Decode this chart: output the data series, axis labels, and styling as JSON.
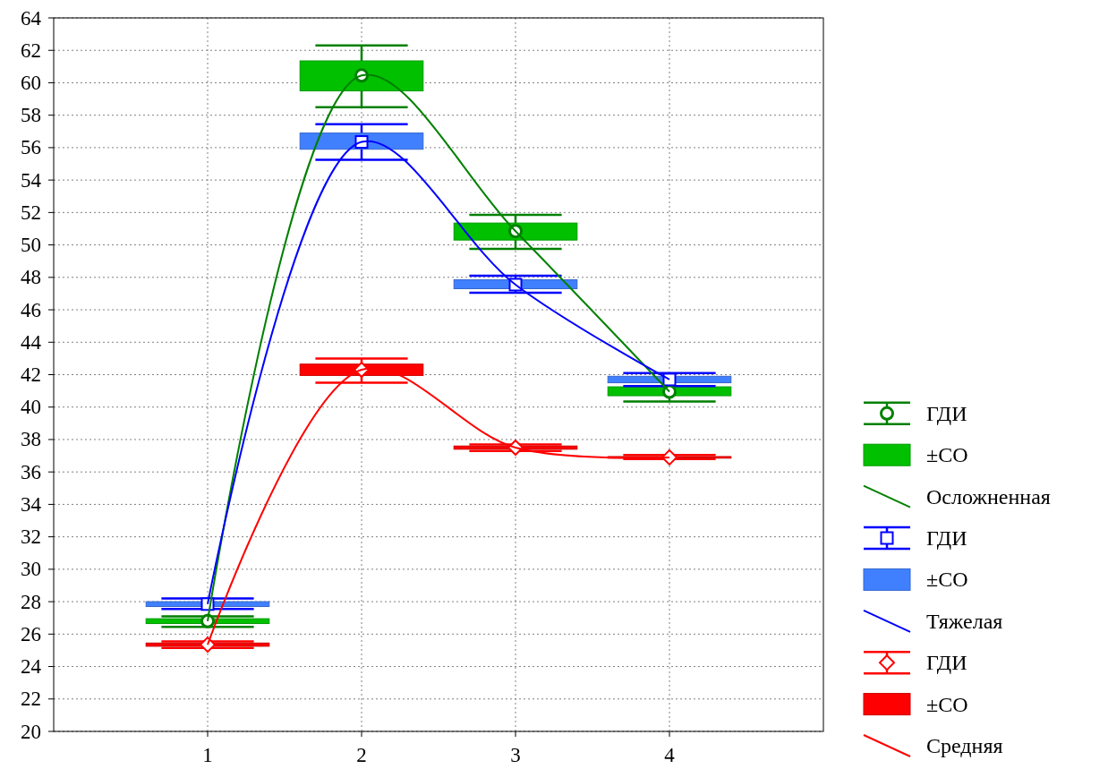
{
  "chart_data": {
    "type": "line",
    "x": [
      1,
      2,
      3,
      4
    ],
    "xlim": [
      0,
      5
    ],
    "xticks": [
      1,
      2,
      3,
      4
    ],
    "ylim": [
      20,
      64
    ],
    "yticks": [
      20,
      22,
      24,
      26,
      28,
      30,
      32,
      34,
      36,
      38,
      40,
      42,
      44,
      46,
      48,
      50,
      52,
      54,
      56,
      58,
      60,
      62,
      64
    ],
    "grid": true,
    "legend": "right",
    "series": [
      {
        "type": "scatter",
        "name": "ГДИ",
        "color": "#008000",
        "marker": "circle",
        "values": [
          26.8,
          60.45,
          50.85,
          40.95
        ],
        "errors": [
          [
            26.45,
            27.1
          ],
          [
            58.5,
            62.3
          ],
          [
            49.75,
            51.85
          ],
          [
            40.35,
            41.55
          ]
        ]
      },
      {
        "type": "bar",
        "name": "±СО",
        "color": "#00c000",
        "base": [
          26.65,
          59.5,
          50.3,
          40.7
        ],
        "values": [
          0.3,
          1.85,
          1.05,
          0.55
        ]
      },
      {
        "type": "line",
        "name": "Осложненная",
        "color": "#008000",
        "values": [
          26.8,
          60.45,
          50.85,
          40.95
        ]
      },
      {
        "type": "scatter",
        "name": "ГДИ",
        "color": "#0000ff",
        "marker": "square",
        "values": [
          27.85,
          56.35,
          47.55,
          41.7
        ],
        "errors": [
          [
            27.55,
            28.2
          ],
          [
            55.25,
            57.45
          ],
          [
            47.05,
            48.1
          ],
          [
            41.3,
            42.1
          ]
        ]
      },
      {
        "type": "bar",
        "name": "±СО",
        "color": "#4080ff",
        "base": [
          27.7,
          55.9,
          47.3,
          41.5
        ],
        "values": [
          0.3,
          1.0,
          0.55,
          0.4
        ]
      },
      {
        "name": "Тяжелая",
        "color": "#0000ff",
        "values": [
          27.85,
          56.35,
          47.55,
          41.7
        ]
      },
      {
        "type": "scatter",
        "name": "ГДИ",
        "color": "#ff0000",
        "marker": "diamond",
        "values": [
          25.35,
          42.3,
          37.5,
          36.9
        ],
        "errors": [
          [
            25.15,
            25.55
          ],
          [
            41.5,
            43.0
          ],
          [
            37.3,
            37.7
          ],
          [
            36.8,
            37.05
          ]
        ]
      },
      {
        "type": "bar",
        "name": "±СО",
        "color": "#ff0000",
        "base": [
          25.25,
          41.95,
          37.4,
          36.85
        ],
        "values": [
          0.2,
          0.7,
          0.2,
          0.1
        ]
      },
      {
        "type": "line",
        "name": "Средняя",
        "color": "#ff0000",
        "values": [
          25.35,
          42.3,
          37.5,
          36.9
        ]
      }
    ]
  }
}
